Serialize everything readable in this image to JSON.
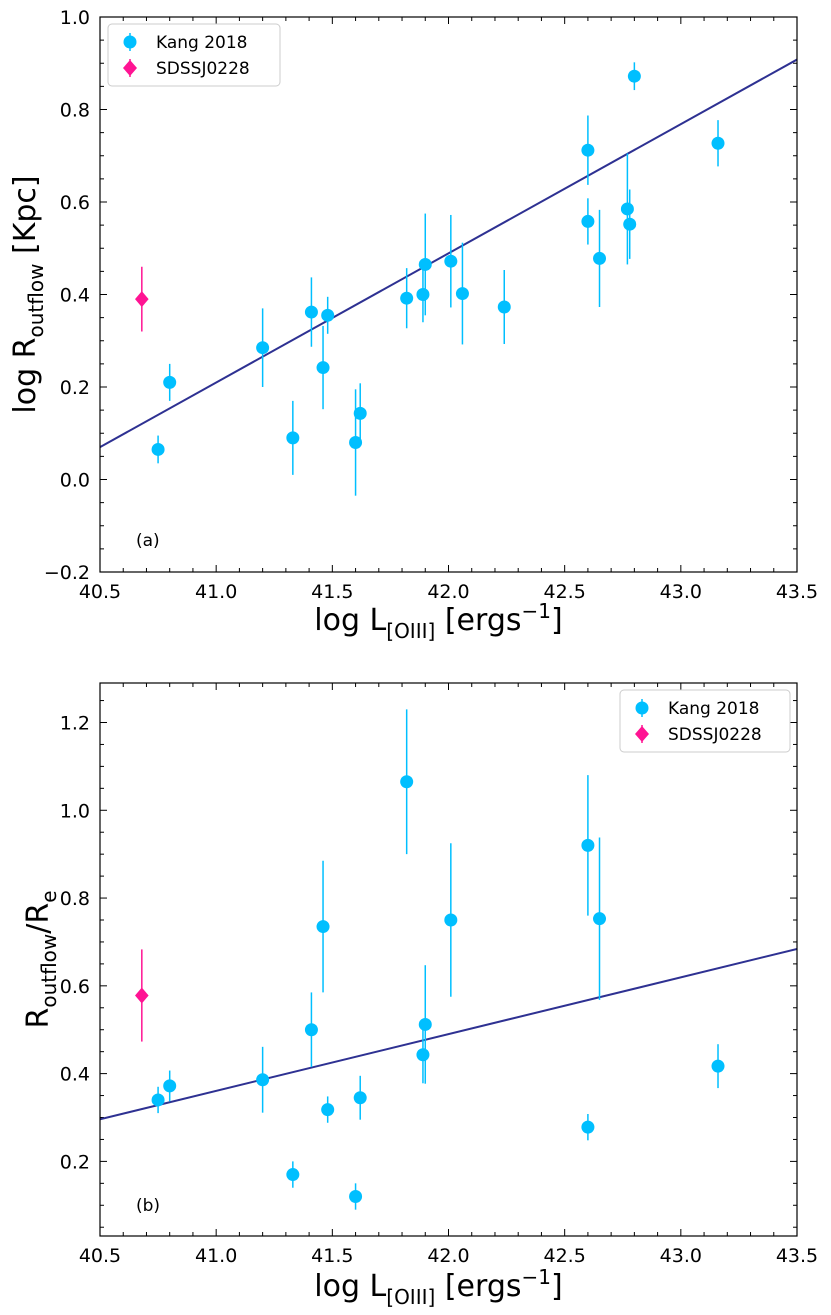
{
  "chart_data": [
    {
      "type": "scatter",
      "title": "",
      "xlabel": "log L[OIII] [ergs^-1]",
      "ylabel": "log Routflow [Kpc]",
      "xlabel_parts": {
        "main": "log L",
        "sub": "[OIII]",
        "after": " [ergs",
        "sup": "−1",
        "close": "]"
      },
      "ylabel_parts": {
        "main": "log R",
        "sub": "outflow",
        "after": " [Kpc]"
      },
      "xlim": [
        40.5,
        43.5
      ],
      "ylim": [
        -0.2,
        1.0
      ],
      "xticks": [
        "40.5",
        "41.0",
        "41.5",
        "42.0",
        "42.5",
        "43.0",
        "43.5"
      ],
      "yticks": [
        "−0.2",
        "0.0",
        "0.2",
        "0.4",
        "0.6",
        "0.8",
        "1.0"
      ],
      "panel_label": "(a)",
      "legend": {
        "position": "upper left",
        "entries": [
          "Kang 2018",
          "SDSSJ0228"
        ]
      },
      "series": [
        {
          "name": "Kang 2018",
          "marker": "circle",
          "color": "#00BFFF",
          "points": [
            {
              "x": 40.75,
              "y": 0.065,
              "err": 0.03
            },
            {
              "x": 40.8,
              "y": 0.21,
              "err": 0.04
            },
            {
              "x": 41.2,
              "y": 0.285,
              "err": 0.085
            },
            {
              "x": 41.33,
              "y": 0.09,
              "err": 0.08
            },
            {
              "x": 41.41,
              "y": 0.362,
              "err": 0.075
            },
            {
              "x": 41.46,
              "y": 0.242,
              "err": 0.09
            },
            {
              "x": 41.48,
              "y": 0.355,
              "err": 0.04
            },
            {
              "x": 41.6,
              "y": 0.08,
              "err": 0.115
            },
            {
              "x": 41.62,
              "y": 0.143,
              "err": 0.065
            },
            {
              "x": 41.82,
              "y": 0.392,
              "err": 0.065
            },
            {
              "x": 41.89,
              "y": 0.4,
              "err": 0.06
            },
            {
              "x": 41.9,
              "y": 0.465,
              "err": 0.11
            },
            {
              "x": 42.01,
              "y": 0.472,
              "err": 0.1
            },
            {
              "x": 42.06,
              "y": 0.402,
              "err": 0.11
            },
            {
              "x": 42.24,
              "y": 0.373,
              "err": 0.08
            },
            {
              "x": 42.6,
              "y": 0.712,
              "err": 0.075
            },
            {
              "x": 42.6,
              "y": 0.558,
              "err": 0.05
            },
            {
              "x": 42.65,
              "y": 0.478,
              "err": 0.105
            },
            {
              "x": 42.77,
              "y": 0.585,
              "err": 0.12
            },
            {
              "x": 42.78,
              "y": 0.552,
              "err": 0.075
            },
            {
              "x": 42.8,
              "y": 0.872,
              "err": 0.03
            },
            {
              "x": 43.16,
              "y": 0.727,
              "err": 0.05
            }
          ]
        },
        {
          "name": "SDSSJ0228",
          "marker": "diamond",
          "color": "#FF1493",
          "points": [
            {
              "x": 40.68,
              "y": 0.39,
              "err": 0.07
            }
          ]
        }
      ],
      "fit_line": {
        "color": "#2E3192",
        "x": [
          40.5,
          43.5
        ],
        "y": [
          0.07,
          0.908
        ]
      }
    },
    {
      "type": "scatter",
      "title": "",
      "xlabel": "log L[OIII] [ergs^-1]",
      "ylabel": "Routflow/Re",
      "xlabel_parts": {
        "main": "log L",
        "sub": "[OIII]",
        "after": " [ergs",
        "sup": "−1",
        "close": "]"
      },
      "ylabel_parts": {
        "main": "R",
        "sub": "outflow",
        "after": "/R",
        "sub2": "e"
      },
      "xlim": [
        40.5,
        43.5
      ],
      "ylim": [
        0.03,
        1.29
      ],
      "xticks": [
        "40.5",
        "41.0",
        "41.5",
        "42.0",
        "42.5",
        "43.0",
        "43.5"
      ],
      "yticks": [
        "0.2",
        "0.4",
        "0.6",
        "0.8",
        "1.0",
        "1.2"
      ],
      "panel_label": "(b)",
      "legend": {
        "position": "upper right",
        "entries": [
          "Kang 2018",
          "SDSSJ0228"
        ]
      },
      "series": [
        {
          "name": "Kang 2018",
          "marker": "circle",
          "color": "#00BFFF",
          "points": [
            {
              "x": 40.75,
              "y": 0.34,
              "err": 0.03
            },
            {
              "x": 40.8,
              "y": 0.372,
              "err": 0.035
            },
            {
              "x": 41.2,
              "y": 0.386,
              "err": 0.075
            },
            {
              "x": 41.33,
              "y": 0.17,
              "err": 0.03
            },
            {
              "x": 41.41,
              "y": 0.5,
              "err": 0.085
            },
            {
              "x": 41.46,
              "y": 0.735,
              "err": 0.15
            },
            {
              "x": 41.48,
              "y": 0.318,
              "err": 0.03
            },
            {
              "x": 41.6,
              "y": 0.12,
              "err": 0.03
            },
            {
              "x": 41.62,
              "y": 0.345,
              "err": 0.05
            },
            {
              "x": 41.82,
              "y": 1.065,
              "err": 0.165
            },
            {
              "x": 41.89,
              "y": 0.443,
              "err": 0.065
            },
            {
              "x": 41.9,
              "y": 0.512,
              "err": 0.135
            },
            {
              "x": 42.01,
              "y": 0.75,
              "err": 0.175
            },
            {
              "x": 42.6,
              "y": 0.92,
              "err": 0.16
            },
            {
              "x": 42.6,
              "y": 0.278,
              "err": 0.03
            },
            {
              "x": 42.65,
              "y": 0.753,
              "err": 0.185
            },
            {
              "x": 43.16,
              "y": 0.417,
              "err": 0.05
            }
          ]
        },
        {
          "name": "SDSSJ0228",
          "marker": "diamond",
          "color": "#FF1493",
          "points": [
            {
              "x": 40.68,
              "y": 0.578,
              "err": 0.105
            }
          ]
        }
      ],
      "fit_line": {
        "color": "#2E3192",
        "x": [
          40.5,
          43.5
        ],
        "y": [
          0.296,
          0.684
        ]
      }
    }
  ]
}
